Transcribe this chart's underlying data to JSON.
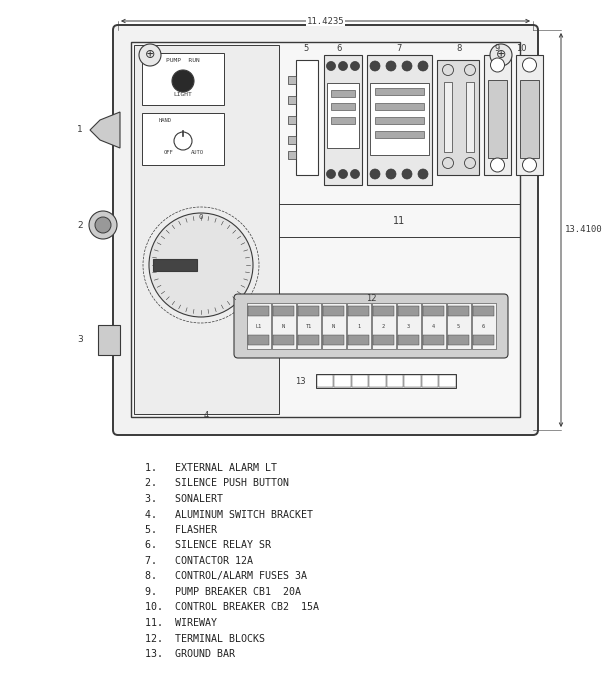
{
  "bg_color": "#ffffff",
  "line_color": "#3a3a3a",
  "dim_width": "11.4235",
  "dim_height": "13.4100",
  "legend_items": [
    "1.   EXTERNAL ALARM LT",
    "2.   SILENCE PUSH BUTTON",
    "3.   SONALERT",
    "4.   ALUMINUM SWITCH BRACKET",
    "5.   FLASHER",
    "6.   SILENCE RELAY SR",
    "7.   CONTACTOR 12A",
    "8.   CONTROL/ALARM FUSES 3A",
    "9.   PUMP BREAKER CB1  20A",
    "10.  CONTROL BREAKER CB2  15A",
    "11.  WIREWAY",
    "12.  TERMINAL BLOCKS",
    "13.  GROUND BAR"
  ]
}
